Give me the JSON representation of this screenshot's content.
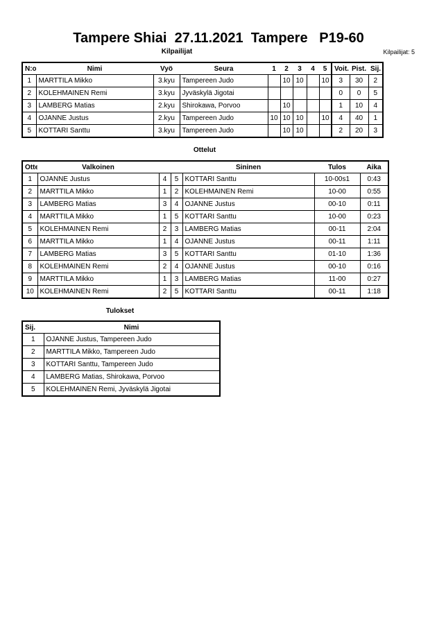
{
  "title": "Tampere Shiai  27.11.2021  Tampere   P19-60",
  "competitors": {
    "heading": "Kilpailijat",
    "count_label": "Kilpailijat: 5",
    "columns": [
      "N:o",
      "Nimi",
      "Vyö",
      "Seura",
      "1",
      "2",
      "3",
      "4",
      "5",
      "Voit.",
      "Pist.",
      "Sij."
    ],
    "rows": [
      [
        "1",
        "MARTTILA Mikko",
        "3.kyu",
        "Tampereen Judo",
        "",
        "10",
        "10",
        "",
        "10",
        "3",
        "30",
        "2"
      ],
      [
        "2",
        "KOLEHMAINEN Remi",
        "3.kyu",
        "Jyväskylä Jigotai",
        "",
        "",
        "",
        "",
        "",
        "0",
        "0",
        "5"
      ],
      [
        "3",
        "LAMBERG Matias",
        "2.kyu",
        "Shirokawa, Porvoo",
        "",
        "10",
        "",
        "",
        "",
        "1",
        "10",
        "4"
      ],
      [
        "4",
        "OJANNE Justus",
        "2.kyu",
        "Tampereen Judo",
        "10",
        "10",
        "10",
        "",
        "10",
        "4",
        "40",
        "1"
      ],
      [
        "5",
        "KOTTARI Santtu",
        "3.kyu",
        "Tampereen Judo",
        "",
        "10",
        "10",
        "",
        "",
        "2",
        "20",
        "3"
      ]
    ]
  },
  "matches": {
    "heading": "Ottelut",
    "columns": [
      "Ottelu",
      "Valkoinen",
      "",
      "",
      "Sininen",
      "Tulos",
      "Aika"
    ],
    "rows": [
      [
        "1",
        "OJANNE Justus",
        "4",
        "5",
        "KOTTARI Santtu",
        "10-00s1",
        "0:43"
      ],
      [
        "2",
        "MARTTILA Mikko",
        "1",
        "2",
        "KOLEHMAINEN Remi",
        "10-00",
        "0:55"
      ],
      [
        "3",
        "LAMBERG Matias",
        "3",
        "4",
        "OJANNE Justus",
        "00-10",
        "0:11"
      ],
      [
        "4",
        "MARTTILA Mikko",
        "1",
        "5",
        "KOTTARI Santtu",
        "10-00",
        "0:23"
      ],
      [
        "5",
        "KOLEHMAINEN Remi",
        "2",
        "3",
        "LAMBERG Matias",
        "00-11",
        "2:04"
      ],
      [
        "6",
        "MARTTILA Mikko",
        "1",
        "4",
        "OJANNE Justus",
        "00-11",
        "1:11"
      ],
      [
        "7",
        "LAMBERG Matias",
        "3",
        "5",
        "KOTTARI Santtu",
        "01-10",
        "1:36"
      ],
      [
        "8",
        "KOLEHMAINEN Remi",
        "2",
        "4",
        "OJANNE Justus",
        "00-10",
        "0:16"
      ],
      [
        "9",
        "MARTTILA Mikko",
        "1",
        "3",
        "LAMBERG Matias",
        "11-00",
        "0:27"
      ],
      [
        "10",
        "KOLEHMAINEN Remi",
        "2",
        "5",
        "KOTTARI Santtu",
        "00-11",
        "1:18"
      ]
    ]
  },
  "results": {
    "heading": "Tulokset",
    "columns": [
      "Sij.",
      "Nimi"
    ],
    "rows": [
      [
        "1",
        "OJANNE Justus, Tampereen Judo"
      ],
      [
        "2",
        "MARTTILA Mikko, Tampereen Judo"
      ],
      [
        "3",
        "KOTTARI Santtu, Tampereen Judo"
      ],
      [
        "4",
        "LAMBERG Matias, Shirokawa, Porvoo"
      ],
      [
        "5",
        "KOLEHMAINEN Remi, Jyväskylä Jigotai"
      ]
    ]
  }
}
